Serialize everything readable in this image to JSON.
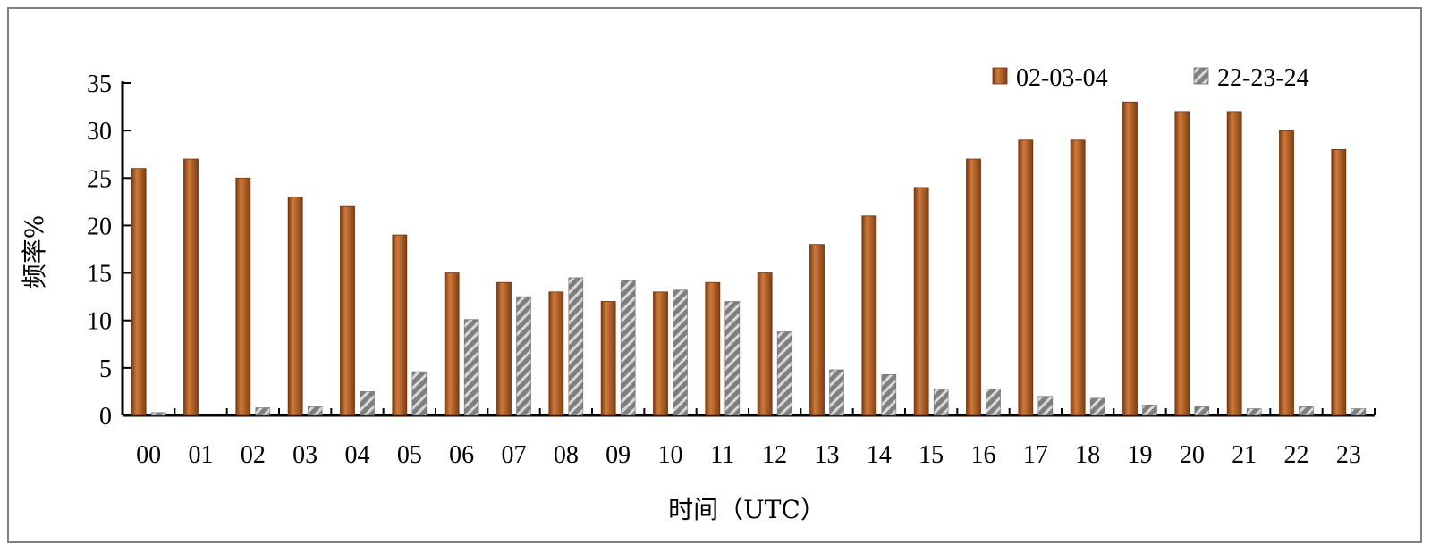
{
  "chart_data": {
    "type": "bar",
    "categories": [
      "00",
      "01",
      "02",
      "03",
      "04",
      "05",
      "06",
      "07",
      "08",
      "09",
      "10",
      "11",
      "12",
      "13",
      "14",
      "15",
      "16",
      "17",
      "18",
      "19",
      "20",
      "21",
      "22",
      "23"
    ],
    "series": [
      {
        "name": "02-03-04",
        "color": "#8b4513",
        "values": [
          26,
          27,
          25,
          23,
          22,
          19,
          15,
          14,
          13,
          12,
          13,
          14,
          15,
          18,
          21,
          24,
          27,
          29,
          29,
          33,
          32,
          32,
          30,
          28
        ]
      },
      {
        "name": "22-23-24",
        "color": "#808080",
        "values": [
          0.3,
          0,
          0.8,
          0.9,
          2.5,
          4.6,
          10.1,
          12.5,
          14.5,
          14.2,
          13.2,
          12,
          8.8,
          4.8,
          4.3,
          2.8,
          2.8,
          2,
          1.8,
          1.1,
          0.9,
          0.7,
          0.9,
          0.7
        ]
      }
    ],
    "xlabel": "时间（UTC）",
    "ylabel": "频率%",
    "ylim": [
      0,
      35
    ],
    "yticks": [
      0,
      5,
      10,
      15,
      20,
      25,
      30,
      35
    ],
    "grid": false,
    "legend": "top-right"
  }
}
